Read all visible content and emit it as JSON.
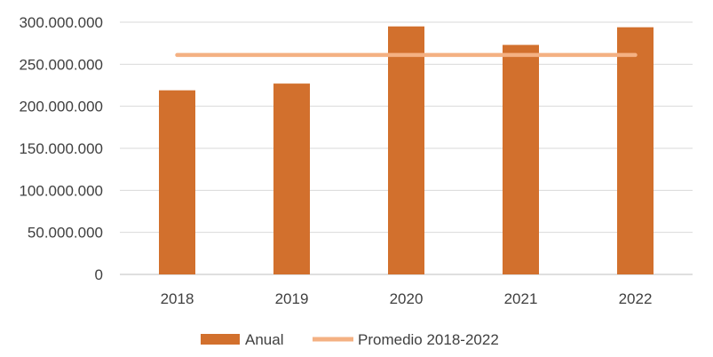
{
  "chart_data": {
    "type": "bar",
    "title": "",
    "xlabel": "",
    "ylabel": "",
    "categories": [
      "2018",
      "2019",
      "2020",
      "2021",
      "2022"
    ],
    "ylim": [
      0,
      300000000
    ],
    "yticks": [
      0,
      50000000,
      100000000,
      150000000,
      200000000,
      250000000,
      300000000
    ],
    "ytick_labels": [
      "0",
      "50.000.000",
      "100.000.000",
      "150.000.000",
      "200.000.000",
      "250.000.000",
      "300.000.000"
    ],
    "grid": true,
    "legend_position": "bottom",
    "series": [
      {
        "name": "Anual",
        "type": "bar",
        "color": "#D2702D",
        "values": [
          219000000,
          227000000,
          295000000,
          273000000,
          294000000
        ]
      },
      {
        "name": "Promedio 2018-2022",
        "type": "line",
        "color": "#F4B183",
        "values": [
          261000000,
          261000000,
          261000000,
          261000000,
          261000000
        ]
      }
    ]
  }
}
